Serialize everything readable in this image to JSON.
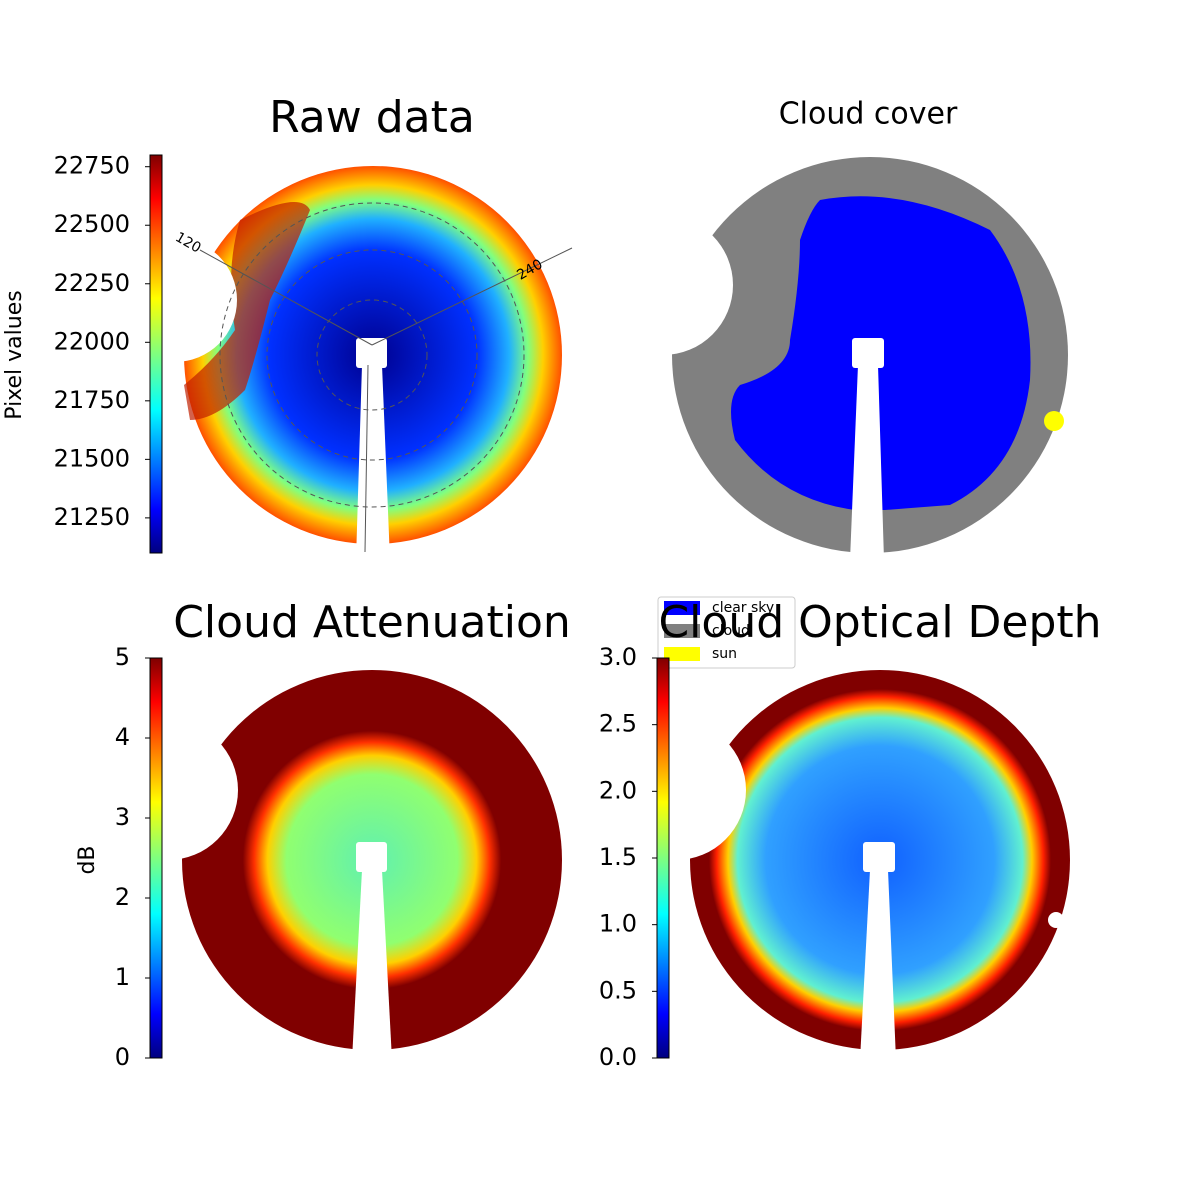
{
  "chart_data": [
    {
      "type": "image",
      "title": "Raw data",
      "colorbar_label": "Pixel values",
      "colormap": "jet",
      "ylim": [
        21100,
        22800
      ],
      "yticks": [
        21250,
        21500,
        21750,
        22000,
        22250,
        22500,
        22750
      ],
      "angle_labels": [
        "120",
        "240"
      ]
    },
    {
      "type": "image",
      "title": "Cloud cover",
      "legend": [
        {
          "name": "clear sky",
          "color": "#0000ff"
        },
        {
          "name": "cloud",
          "color": "#808080"
        },
        {
          "name": "sun",
          "color": "#ffff00"
        }
      ]
    },
    {
      "type": "image",
      "title": "Cloud Attenuation",
      "colorbar_label": "dB",
      "colormap": "jet",
      "ylim": [
        0,
        5
      ],
      "yticks": [
        0,
        1,
        2,
        3,
        4,
        5
      ]
    },
    {
      "type": "image",
      "title": "Cloud Optical Depth",
      "colormap": "jet",
      "ylim": [
        0,
        3
      ],
      "yticks": [
        {
          "value": 0,
          "label": "0.0"
        },
        {
          "value": 0.5,
          "label": "0.5"
        },
        {
          "value": 1,
          "label": "1.0"
        },
        {
          "value": 1.5,
          "label": "1.5"
        },
        {
          "value": 2,
          "label": "2.0"
        },
        {
          "value": 2.5,
          "label": "2.5"
        },
        {
          "value": 3,
          "label": "3.0"
        }
      ]
    }
  ]
}
